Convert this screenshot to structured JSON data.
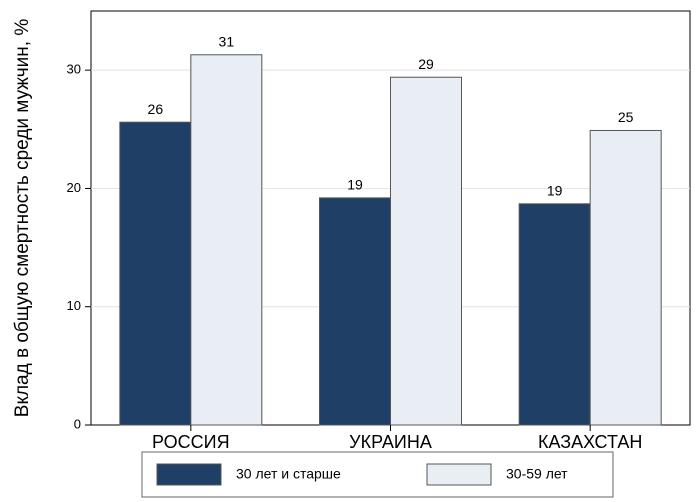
{
  "chart_data": {
    "type": "bar",
    "categories": [
      "РОССИЯ",
      "УКРАИНА",
      "КАЗАХСТАН"
    ],
    "series": [
      {
        "name": "30 лет и старше",
        "values": [
          25.6,
          19.2,
          18.7
        ],
        "labels": [
          "26",
          "19",
          "19"
        ],
        "color": "#1f3f66"
      },
      {
        "name": "30-59 лет",
        "values": [
          31.3,
          29.4,
          24.9
        ],
        "labels": [
          "31",
          "29",
          "25"
        ],
        "color": "#e8eef3"
      }
    ],
    "ylabel": "Вклад в общую смертность среди мужчин, %",
    "xlabel": "",
    "ylim": [
      0,
      35
    ],
    "yticks": [
      0,
      10,
      20,
      30
    ],
    "grid": true,
    "legend": "bottom"
  }
}
